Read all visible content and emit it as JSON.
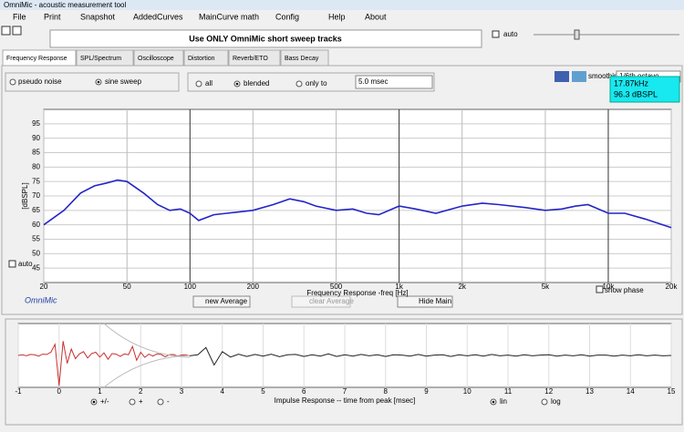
{
  "window": {
    "title": "OmniMic - acoustic measurement tool"
  },
  "menu": [
    "File",
    "Print",
    "Snapshot",
    "AddedCurves",
    "MainCurve math",
    "Config",
    "Help",
    "About"
  ],
  "banner": "Use ONLY OmniMic short sweep tracks",
  "top_auto": "auto",
  "tabs": [
    "Frequency Response",
    "SPL/Spectrum",
    "Oscilloscope",
    "Distortion",
    "Reverb/ETO",
    "Bass Decay"
  ],
  "options": {
    "pseudo_noise": "pseudo noise",
    "sine_sweep": "sine sweep",
    "all": "all",
    "blended": "blended",
    "only_to": "only to",
    "window": "5.0 msec",
    "smoothing": "smoothing",
    "smoothing_value": "1/6th octave"
  },
  "cursor": {
    "freq": "17.87kHz",
    "level": "96.3 dBSPL"
  },
  "chart_data": [
    {
      "type": "line",
      "xlabel": "Frequency Response -freq [Hz]",
      "ylabel": "[dBSPL]",
      "log_x": true,
      "grid": true,
      "color": "#2424c8",
      "x": [
        20,
        25,
        30,
        35,
        40,
        45,
        50,
        60,
        70,
        80,
        90,
        100,
        110,
        130,
        150,
        200,
        250,
        300,
        350,
        400,
        500,
        600,
        700,
        800,
        1000,
        1200,
        1500,
        2000,
        2500,
        3000,
        4000,
        5000,
        6000,
        7000,
        8000,
        10000,
        12000,
        15000,
        20000
      ],
      "values": [
        60,
        65,
        71,
        73.5,
        74.5,
        75.5,
        75,
        71,
        67,
        65,
        65.5,
        64,
        61.5,
        63.5,
        64,
        65,
        67,
        69,
        68,
        66.5,
        65,
        65.5,
        64,
        63.5,
        66.5,
        65.5,
        64,
        66.5,
        67.5,
        67,
        66,
        65,
        65.5,
        66.5,
        67,
        64,
        64,
        62,
        59
      ],
      "xlim": [
        20,
        20000
      ],
      "xticks": [
        20,
        50,
        100,
        200,
        500,
        {
          "value": 1000,
          "label": "1k"
        },
        {
          "value": 2000,
          "label": "2k"
        },
        {
          "value": 5000,
          "label": "5k"
        },
        {
          "value": 10000,
          "label": "10k"
        },
        {
          "value": 20000,
          "label": "20k"
        }
      ],
      "ylim": [
        40,
        100
      ],
      "yticks": [
        45,
        50,
        55,
        60,
        65,
        70,
        75,
        80,
        85,
        90,
        95
      ]
    },
    {
      "type": "line",
      "xlabel": "Impulse Response  -- time from peak [msec]",
      "grid": true,
      "xlim": [
        -1,
        15
      ],
      "xticks": [
        -1,
        0,
        1,
        2,
        3,
        4,
        5,
        6,
        7,
        8,
        9,
        10,
        11,
        12,
        13,
        14,
        15
      ],
      "ylim": [
        -1,
        1
      ],
      "series": [
        {
          "color": "#c83030",
          "x": [
            -1,
            -0.9,
            -0.8,
            -0.7,
            -0.6,
            -0.5,
            -0.4,
            -0.3,
            -0.2,
            -0.1,
            0,
            0.1,
            0.2,
            0.3,
            0.4,
            0.5,
            0.6,
            0.7,
            0.8,
            0.9,
            1,
            1.1,
            1.2,
            1.3,
            1.4,
            1.5,
            1.6,
            1.7,
            1.8,
            1.9,
            2,
            2.1,
            2.2,
            2.3,
            2.4,
            2.5,
            2.6,
            2.7,
            2.8,
            2.9,
            3,
            3.1,
            3.2
          ],
          "values": [
            0,
            0.02,
            -0.01,
            0.03,
            0.02,
            -0.02,
            0.04,
            0.03,
            0.1,
            0.35,
            -0.95,
            0.45,
            -0.25,
            0.2,
            -0.1,
            0.05,
            0.12,
            -0.08,
            0.06,
            0.1,
            -0.05,
            0.08,
            -0.12,
            0.06,
            0.04,
            -0.03,
            0.05,
            0.02,
            0.28,
            -0.15,
            0.1,
            -0.06,
            0.04,
            -0.02,
            0.05,
            0.03,
            -0.04,
            0.02,
            0.03,
            -0.02,
            0.01,
            0.02,
            -0.01
          ]
        },
        {
          "color": "#202020",
          "x": [
            3.2,
            3.4,
            3.6,
            3.8,
            4,
            4.2,
            4.4,
            4.6,
            4.8,
            5,
            5.2,
            5.4,
            5.6,
            5.8,
            6,
            6.2,
            6.4,
            6.6,
            6.8,
            7,
            7.2,
            7.4,
            7.6,
            7.8,
            8,
            8.2,
            8.4,
            8.6,
            8.8,
            9,
            9.2,
            9.4,
            9.6,
            9.8,
            10,
            10.2,
            10.4,
            10.6,
            10.8,
            11,
            11.2,
            11.4,
            11.6,
            11.8,
            12,
            12.2,
            12.4,
            12.6,
            12.8,
            13,
            13.2,
            13.4,
            13.6,
            13.8,
            14,
            14.2,
            14.4,
            14.6,
            14.8,
            15
          ],
          "values": [
            -0.01,
            0.02,
            0.25,
            -0.3,
            0.12,
            -0.05,
            0.04,
            -0.03,
            0.03,
            -0.02,
            0.04,
            -0.04,
            0.02,
            0.03,
            -0.03,
            0.02,
            -0.02,
            0.05,
            -0.03,
            0.02,
            -0.02,
            0.03,
            -0.01,
            0.02,
            -0.03,
            0.02,
            0.01,
            -0.02,
            0.03,
            -0.02,
            0.01,
            0.02,
            -0.03,
            0.02,
            -0.01,
            0.02,
            -0.02,
            0.03,
            -0.01,
            0.01,
            -0.02,
            0.02,
            -0.01,
            0.01,
            0.02,
            -0.02,
            0.01,
            -0.01,
            0.02,
            -0.02,
            0.01,
            0.01,
            -0.02,
            0.01,
            -0.01,
            0.02,
            -0.01,
            0.01,
            -0.01,
            0
          ]
        }
      ]
    }
  ],
  "controls": {
    "auto": "auto",
    "omnimic": "OmniMic",
    "new_average": "new Average",
    "clear_average": "clear Average",
    "hide_main": "Hide Main",
    "show_phase": "show phase",
    "plus_minus": "+/-",
    "plus": "+",
    "minus": "-",
    "lin": "lin",
    "log": "log"
  }
}
